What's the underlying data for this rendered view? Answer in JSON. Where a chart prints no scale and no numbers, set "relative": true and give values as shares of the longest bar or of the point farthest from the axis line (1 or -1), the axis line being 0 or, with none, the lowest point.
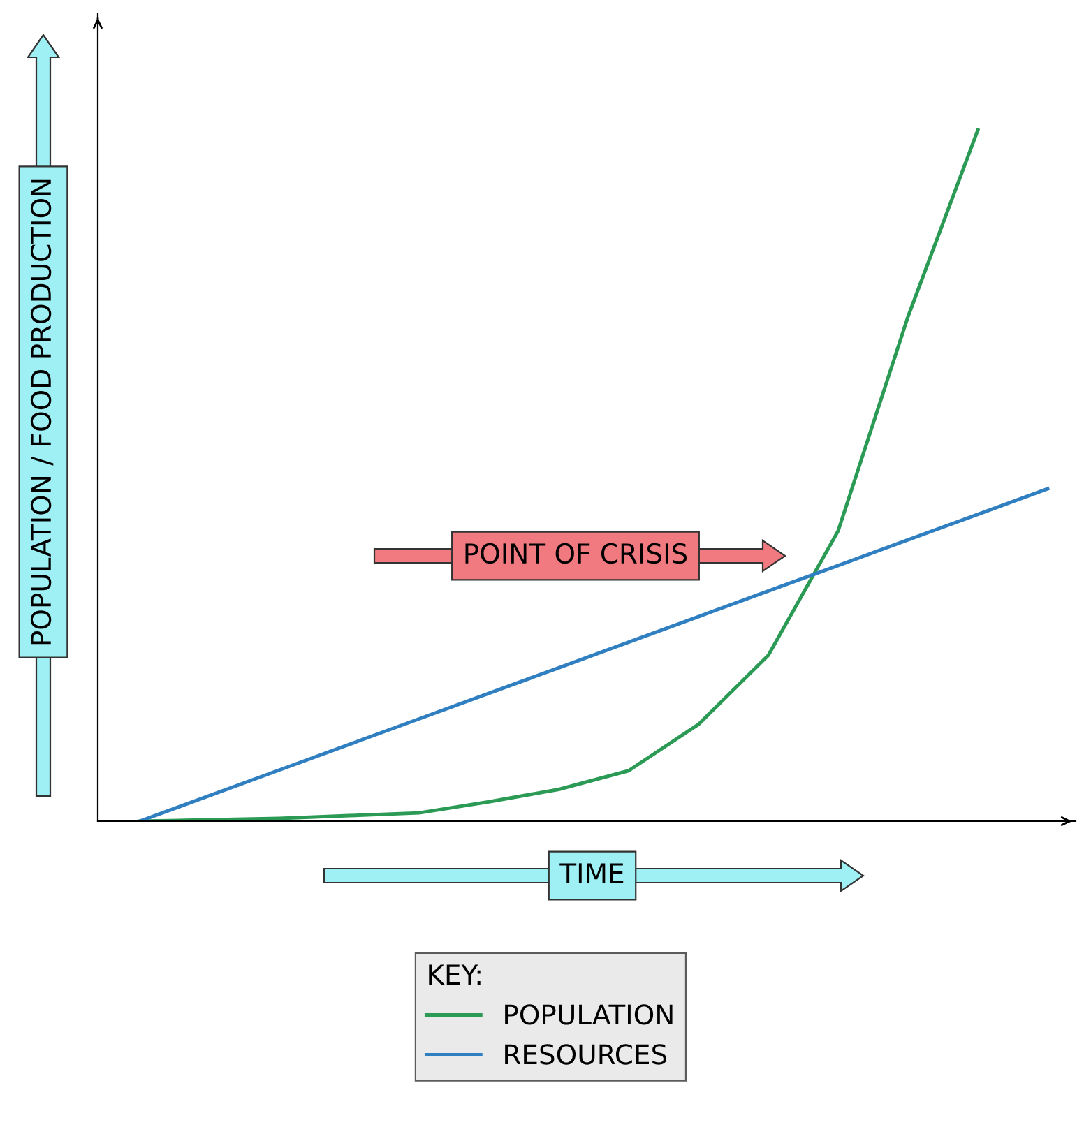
{
  "chart_data": {
    "type": "line",
    "relative": true,
    "xlabel": "TIME",
    "ylabel": "POPULATION / FOOD PRODUCTION",
    "categories": [
      null,
      null,
      null,
      null,
      null,
      null,
      null,
      null,
      null,
      null,
      null,
      null,
      null,
      null
    ],
    "series": [
      {
        "name": "POPULATION",
        "color": "#2a9a55",
        "values": [
          0,
          0.002,
          0.004,
          0.008,
          0.012,
          0.028,
          0.046,
          0.073,
          0.14,
          0.24,
          0.42,
          0.73,
          1,
          null
        ]
      },
      {
        "name": "RESOURCES",
        "color": "#2f7fc1",
        "values": [
          0,
          0.037,
          0.074,
          0.111,
          0.148,
          0.185,
          0.222,
          0.259,
          0.296,
          0.333,
          0.37,
          0.407,
          0.444,
          0.481
        ]
      }
    ],
    "annotations": [
      "POINT OF CRISIS"
    ],
    "legend": "bottom",
    "legend_title": "KEY:",
    "marker": "none",
    "line_style": "solid"
  }
}
